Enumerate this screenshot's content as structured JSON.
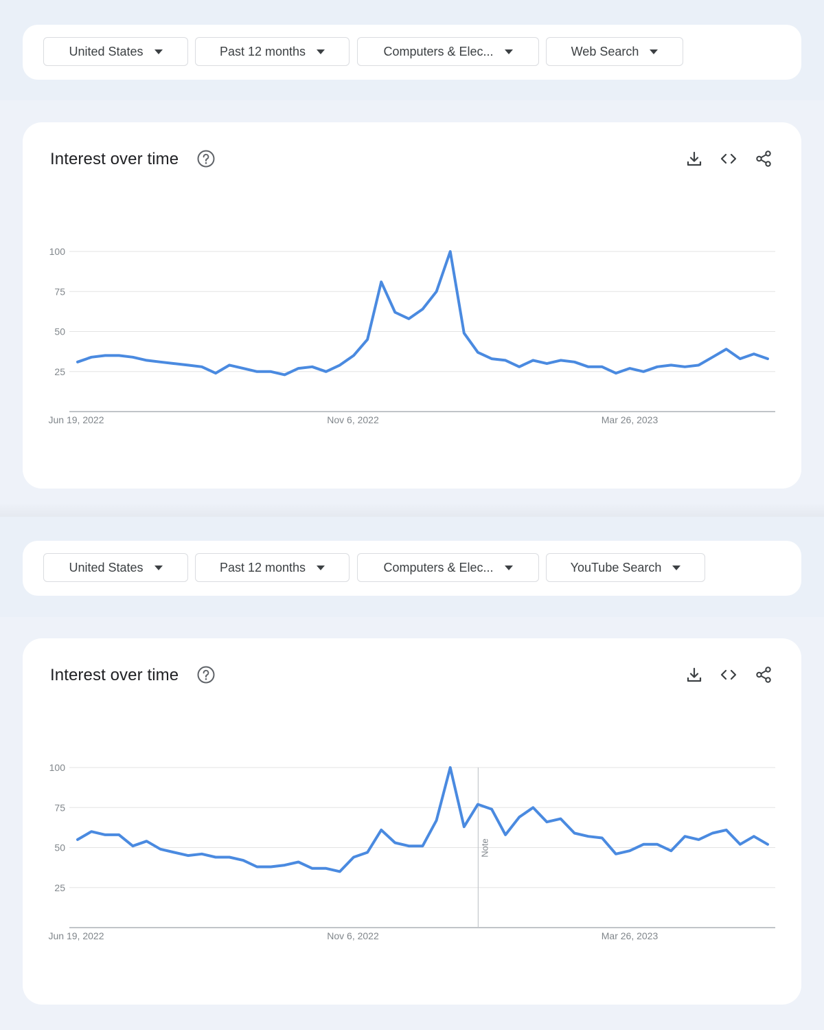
{
  "panels": [
    {
      "filters": [
        {
          "label": "United States"
        },
        {
          "label": "Past 12 months"
        },
        {
          "label": "Computers & Elec..."
        },
        {
          "label": "Web Search"
        }
      ],
      "title": "Interest over time",
      "icons": {
        "help": "help-circle-icon",
        "download": "download-icon",
        "embed": "embed-code-icon",
        "share": "share-icon"
      },
      "chart_data": {
        "type": "line",
        "xlabel": "",
        "ylabel": "",
        "x_ticks": [
          "Jun 19, 2022",
          "Nov 6, 2022",
          "Mar 26, 2023"
        ],
        "y_ticks": [
          100,
          75,
          50,
          25
        ],
        "ylim": [
          0,
          100
        ],
        "grid": true,
        "line_color": "#4a8ae0",
        "notes": [],
        "series": [
          {
            "values": [
              31,
              34,
              35,
              35,
              34,
              32,
              31,
              30,
              29,
              28,
              24,
              29,
              27,
              25,
              25,
              23,
              27,
              28,
              25,
              29,
              35,
              45,
              81,
              62,
              58,
              64,
              75,
              100,
              49,
              37,
              33,
              32,
              28,
              32,
              30,
              32,
              31,
              28,
              28,
              24,
              27,
              25,
              28,
              29,
              28,
              29,
              34,
              39,
              33,
              36,
              33
            ]
          }
        ]
      }
    },
    {
      "filters": [
        {
          "label": "United States"
        },
        {
          "label": "Past 12 months"
        },
        {
          "label": "Computers & Elec..."
        },
        {
          "label": "YouTube Search"
        }
      ],
      "title": "Interest over time",
      "icons": {
        "help": "help-circle-icon",
        "download": "download-icon",
        "embed": "embed-code-icon",
        "share": "share-icon"
      },
      "chart_data": {
        "type": "line",
        "xlabel": "",
        "ylabel": "",
        "x_ticks": [
          "Jun 19, 2022",
          "Nov 6, 2022",
          "Mar 26, 2023"
        ],
        "y_ticks": [
          100,
          75,
          50,
          25
        ],
        "ylim": [
          0,
          100
        ],
        "grid": true,
        "line_color": "#4a8ae0",
        "notes": [
          {
            "label": "Note",
            "index": 29
          }
        ],
        "series": [
          {
            "values": [
              55,
              60,
              58,
              58,
              51,
              54,
              49,
              47,
              45,
              46,
              44,
              44,
              42,
              38,
              38,
              39,
              41,
              37,
              37,
              35,
              44,
              47,
              61,
              53,
              51,
              51,
              67,
              100,
              63,
              77,
              74,
              58,
              69,
              75,
              66,
              68,
              59,
              57,
              56,
              46,
              48,
              52,
              52,
              48,
              57,
              55,
              59,
              61,
              52,
              57,
              52
            ]
          }
        ]
      }
    }
  ]
}
